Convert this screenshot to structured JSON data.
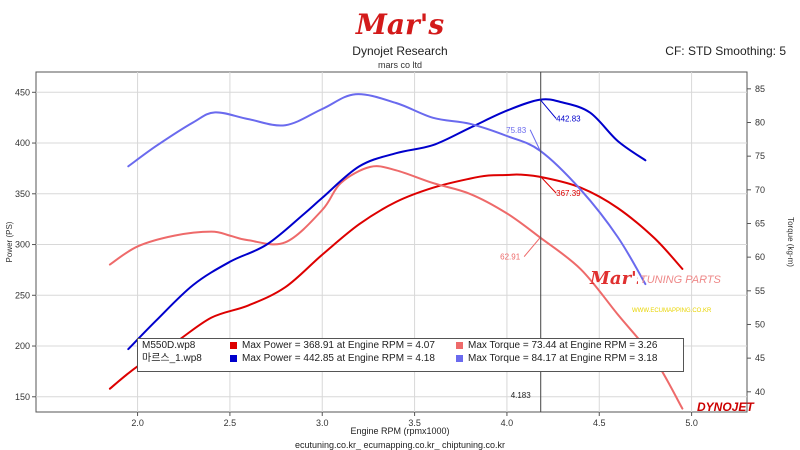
{
  "header": {
    "logo_text": "Mar's",
    "title": "Dynojet Research",
    "subtitle": "mars co ltd",
    "cf_text": "CF: STD Smoothing: 5"
  },
  "footer": {
    "line1": "Engine RPM (rpmx1000)",
    "line2": "ecutuning.co.kr_ ecumapping.co.kr_ chiptuning.co.kr"
  },
  "watermark": {
    "logo_text": "Mar's",
    "text": "TUNING PARTS",
    "sub": "WWW.ECUMAPPING.CO.KR"
  },
  "brand_badge": "DYNOJET",
  "colors": {
    "red": "#dd0000",
    "pink": "#ee6a6a",
    "blue": "#0000cc",
    "lightblue": "#6a6aee"
  },
  "legend": {
    "rows": [
      {
        "file": "M550D.wp8",
        "power_text": "Max Power = 368.91 at Engine RPM = 4.07",
        "torque_text": "Max Torque = 73.44 at Engine RPM = 3.26",
        "power_color": "#dd0000",
        "torque_color": "#ee6a6a"
      },
      {
        "file": "마르스_1.wp8",
        "power_text": "Max Power = 442.85 at Engine RPM = 4.18",
        "torque_text": "Max Torque = 84.17 at Engine RPM = 3.18",
        "power_color": "#0000cc",
        "torque_color": "#6a6aee"
      }
    ]
  },
  "chart_data": {
    "type": "line",
    "xlabel": "Engine RPM (rpmx1000)",
    "ylabel": "Power (PS)",
    "y2label": "Torque (kg-m)",
    "xlim": [
      1.45,
      5.3
    ],
    "ylim": [
      135,
      470
    ],
    "y2lim": [
      37,
      87.5
    ],
    "xticks": [
      2.0,
      2.5,
      3.0,
      3.5,
      4.0,
      4.5,
      5.0
    ],
    "xtick_labels": [
      "2.0",
      "2.5",
      "3.0",
      "3.5",
      "4.0",
      "4.5",
      "5.0"
    ],
    "yticks": [
      150,
      200,
      250,
      300,
      350,
      400,
      450
    ],
    "y2ticks": [
      40,
      45,
      50,
      55,
      60,
      65,
      70,
      75,
      80,
      85
    ],
    "cursor": {
      "x": 4.183,
      "label": "4.183"
    },
    "series": [
      {
        "name": "M550D.wp8 Power",
        "axis": "left",
        "color": "#dd0000",
        "x": [
          1.85,
          2.0,
          2.2,
          2.4,
          2.6,
          2.8,
          3.0,
          3.2,
          3.4,
          3.6,
          3.8,
          3.9,
          4.0,
          4.07,
          4.2,
          4.4,
          4.6,
          4.8,
          4.95
        ],
        "y": [
          158,
          180,
          203,
          228,
          240,
          258,
          290,
          320,
          342,
          356,
          365,
          368,
          368.5,
          368.9,
          366,
          356,
          336,
          306,
          276
        ]
      },
      {
        "name": "M550D.wp8 Torque",
        "axis": "right",
        "color": "#ee6a6a",
        "x": [
          1.85,
          2.0,
          2.2,
          2.4,
          2.5,
          2.6,
          2.8,
          3.0,
          3.1,
          3.26,
          3.4,
          3.6,
          3.8,
          4.0,
          4.18,
          4.4,
          4.6,
          4.8,
          4.95
        ],
        "y": [
          58.9,
          61.6,
          63.2,
          63.8,
          63.2,
          62.5,
          62.2,
          67.0,
          71.0,
          73.4,
          72.9,
          71.0,
          69.4,
          66.5,
          62.9,
          58.2,
          51.5,
          44.8,
          37.5
        ]
      },
      {
        "name": "마르스_1.wp8 Power",
        "axis": "left",
        "color": "#0000cc",
        "x": [
          1.95,
          2.1,
          2.3,
          2.5,
          2.7,
          2.9,
          3.0,
          3.2,
          3.4,
          3.6,
          3.8,
          4.0,
          4.18,
          4.3,
          4.45,
          4.6,
          4.75
        ],
        "y": [
          197,
          225,
          260,
          283,
          300,
          330,
          346,
          377,
          390,
          398,
          415,
          432,
          442.8,
          440,
          430,
          402,
          383
        ]
      },
      {
        "name": "마르스_1.wp8 Torque",
        "axis": "right",
        "color": "#6a6aee",
        "x": [
          1.95,
          2.1,
          2.3,
          2.42,
          2.6,
          2.8,
          3.0,
          3.18,
          3.4,
          3.6,
          3.8,
          4.0,
          4.18,
          4.4,
          4.6,
          4.75
        ],
        "y": [
          73.5,
          76.5,
          80.0,
          81.5,
          80.5,
          79.6,
          82.0,
          84.2,
          82.9,
          80.7,
          79.8,
          78.0,
          75.8,
          70.0,
          63.0,
          56.0
        ]
      }
    ],
    "annotations": [
      {
        "text": "442.83",
        "x": 4.18,
        "y": 442.8,
        "axis": "left",
        "color": "#0000cc"
      },
      {
        "text": "367.39",
        "x": 4.18,
        "y": 367.4,
        "axis": "left",
        "color": "#dd0000"
      },
      {
        "text": "75.83",
        "x": 4.18,
        "y": 75.8,
        "axis": "right",
        "color": "#6a6aee"
      },
      {
        "text": "62.91",
        "x": 4.18,
        "y": 62.9,
        "axis": "right",
        "color": "#ee6a6a"
      }
    ]
  }
}
